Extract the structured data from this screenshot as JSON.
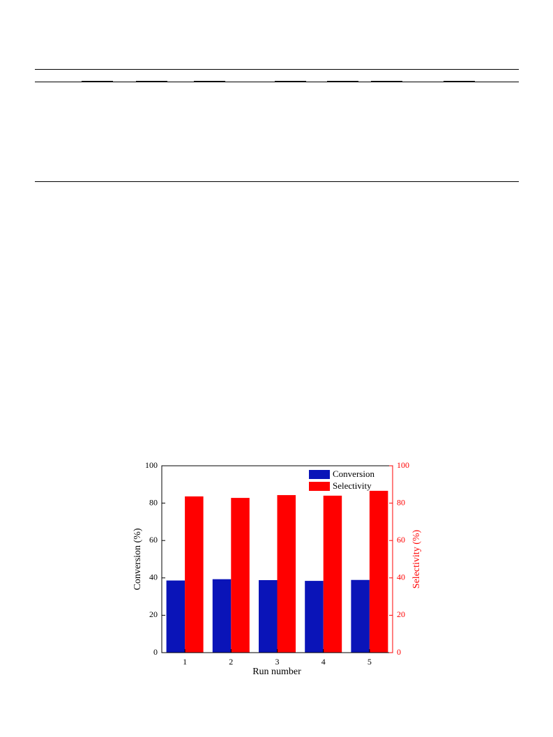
{
  "chart_data": {
    "type": "bar",
    "categories": [
      "1",
      "2",
      "3",
      "4",
      "5"
    ],
    "x_label": "Run number",
    "y_label": "Conversion (%)",
    "y2_label": "Selectivity (%)",
    "series": [
      {
        "name": "Conversion",
        "color": "#0a14b8",
        "values": [
          38.6,
          39.3,
          38.8,
          38.4,
          38.9
        ]
      },
      {
        "name": "Selectivity",
        "color": "#ff0000",
        "axis": "y2",
        "values": [
          83.6,
          82.8,
          84.3,
          84.0,
          86.6
        ]
      }
    ],
    "ylim": [
      0,
      100
    ],
    "yticks": [
      0,
      20,
      40,
      60,
      80,
      100
    ],
    "y2lim": [
      0,
      100
    ],
    "y2ticks": [
      0,
      20,
      40,
      60,
      80,
      100
    ],
    "legend": "upper right"
  }
}
